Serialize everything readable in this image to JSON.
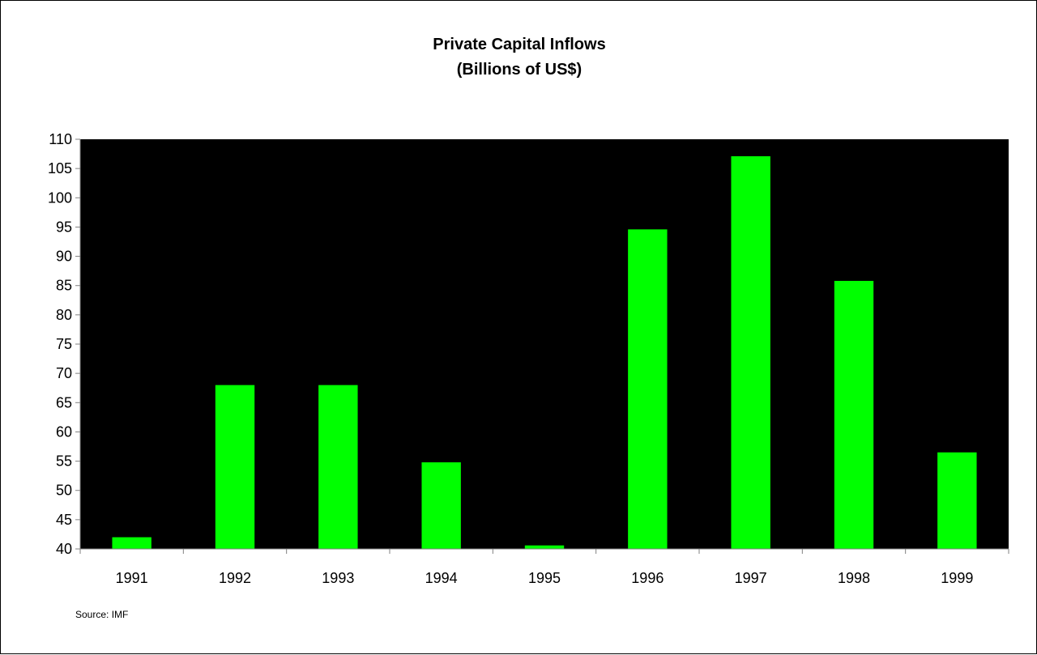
{
  "chart_data": {
    "type": "bar",
    "title": "Private Capital Inflows",
    "subtitle": "(Billions of US$)",
    "categories": [
      "1991",
      "1992",
      "1993",
      "1994",
      "1995",
      "1996",
      "1997",
      "1998",
      "1999"
    ],
    "values": [
      42,
      68,
      68,
      54.8,
      40.6,
      94.6,
      107.1,
      85.8,
      56.5
    ],
    "ylim": [
      40,
      110
    ],
    "ytick_step": 5,
    "yticks": [
      "40",
      "45",
      "50",
      "55",
      "60",
      "65",
      "70",
      "75",
      "80",
      "85",
      "90",
      "95",
      "100",
      "105",
      "110"
    ],
    "xlabel": "",
    "ylabel": "",
    "grid": false,
    "legend": "none",
    "source": "Source: IMF",
    "colors": {
      "bar": "#00ff00",
      "plot_background": "#000000",
      "axis": "#808080"
    }
  }
}
